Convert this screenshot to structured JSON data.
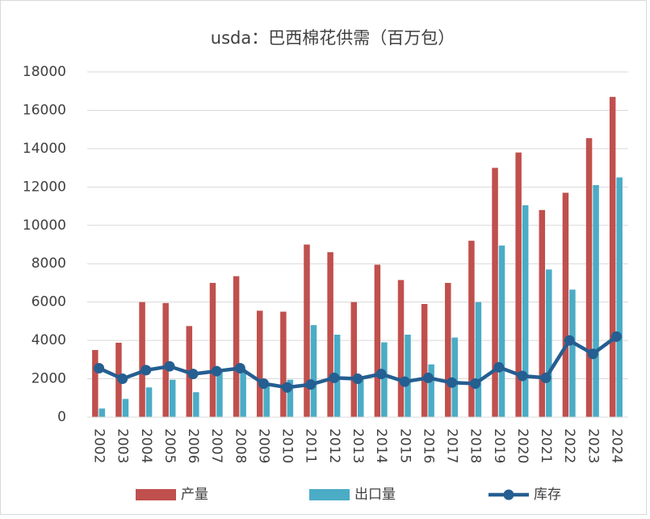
{
  "chart_data": {
    "type": "bar",
    "title": "usda：巴西棉花供需（百万包）",
    "categories": [
      "2002",
      "2003",
      "2004",
      "2005",
      "2006",
      "2007",
      "2008",
      "2009",
      "2010",
      "2011",
      "2012",
      "2013",
      "2014",
      "2015",
      "2016",
      "2017",
      "2018",
      "2019",
      "2020",
      "2021",
      "2022",
      "2023",
      "2024"
    ],
    "series": [
      {
        "name": "产量",
        "type": "bar",
        "color": "#c0504d",
        "values": [
          3500,
          3880,
          6000,
          5950,
          4750,
          7000,
          7350,
          5550,
          5500,
          9000,
          8600,
          6000,
          7950,
          7150,
          5900,
          7000,
          9200,
          13000,
          13800,
          10800,
          11700,
          14550,
          16700
        ]
      },
      {
        "name": "出口量",
        "type": "bar",
        "color": "#4bacc6",
        "values": [
          450,
          950,
          1550,
          1950,
          1300,
          2400,
          2500,
          1700,
          1950,
          4800,
          4300,
          2000,
          3900,
          4300,
          2750,
          4150,
          6000,
          8950,
          11050,
          7700,
          6650,
          12100,
          12500
        ]
      },
      {
        "name": "库存",
        "type": "line",
        "color": "#255e91",
        "values": [
          2550,
          2000,
          2450,
          2650,
          2250,
          2400,
          2550,
          1750,
          1550,
          1700,
          2050,
          2000,
          2250,
          1850,
          2050,
          1800,
          1750,
          2600,
          2150,
          2050,
          4000,
          3300,
          4200
        ]
      }
    ],
    "ylim": [
      0,
      18000
    ],
    "yticks": [
      0,
      2000,
      4000,
      6000,
      8000,
      10000,
      12000,
      14000,
      16000,
      18000
    ],
    "grid": true
  }
}
